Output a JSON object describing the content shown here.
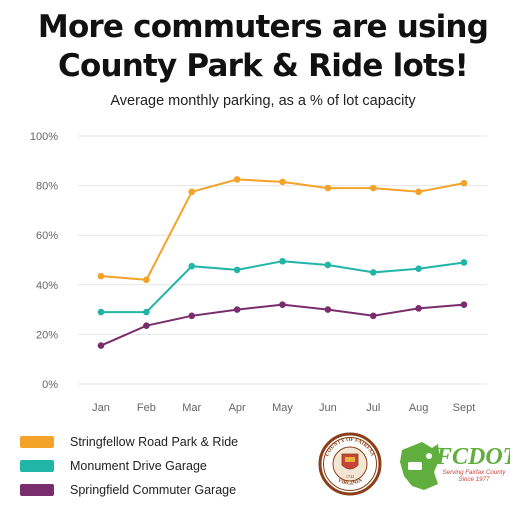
{
  "title_lines": [
    "More commuters are using",
    "County Park & Ride lots!"
  ],
  "subtitle": "Average monthly parking, as a % of lot capacity",
  "chart_data": {
    "type": "line",
    "title": "More commuters are using County Park & Ride lots!",
    "subtitle": "Average monthly parking, as a % of lot capacity",
    "categories": [
      "Jan",
      "Feb",
      "Mar",
      "Apr",
      "May",
      "Jun",
      "Jul",
      "Aug",
      "Sept"
    ],
    "ylim": [
      0,
      100
    ],
    "yticks": [
      0,
      20,
      40,
      60,
      80,
      100
    ],
    "ytick_labels": [
      "0%",
      "20%",
      "40%",
      "60%",
      "80%",
      "100%"
    ],
    "grid": true,
    "legend_position": "bottom-left",
    "series": [
      {
        "name": "Stringfellow Road Park & Ride",
        "color": "#F4A22A",
        "values": [
          43.5,
          42,
          77.5,
          82.5,
          81.5,
          79,
          79,
          77.5,
          81
        ]
      },
      {
        "name": "Monument Drive Garage",
        "color": "#20B5A6",
        "values": [
          29,
          29,
          47.5,
          46,
          49.5,
          48,
          45,
          46.5,
          49
        ]
      },
      {
        "name": "Springfield Commuter Garage",
        "color": "#7A2D6C",
        "values": [
          15.5,
          23.5,
          27.5,
          30,
          32,
          30,
          27.5,
          30.5,
          32
        ]
      }
    ]
  },
  "logos": {
    "seal_text_top": "COUNTY OF FAIRFAX",
    "seal_text_bottom": "VIRGINIA",
    "seal_year": "1742",
    "fcdot_name": "FCDOT",
    "fcdot_tagline_1": "Serving Fairfax County",
    "fcdot_tagline_2": "Since 1977"
  }
}
